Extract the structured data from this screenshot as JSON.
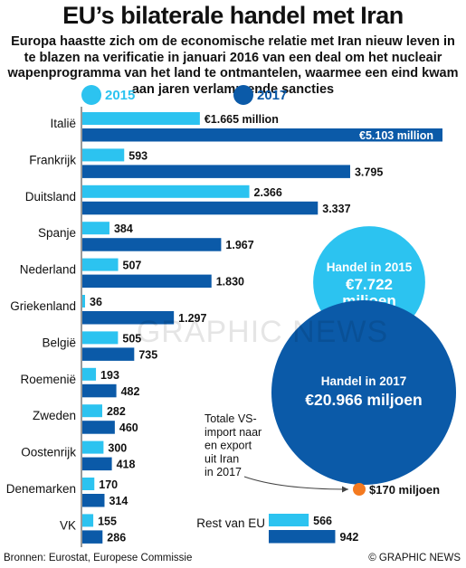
{
  "title": "EU’s bilaterale handel met Iran",
  "subtitle": "Europa haastte zich om de economische relatie met Iran nieuw leven in te blazen na verificatie in januari 2016 van een deal om het nucleair wapenprogramma van het land te ontmantelen, waarmee een eind kwam aan jaren verlammende sancties",
  "colors": {
    "y2015": "#2cc3f0",
    "y2017": "#0b5aa8",
    "marker": "#f47a20"
  },
  "chart_data": {
    "type": "bar",
    "orientation": "horizontal",
    "unit": "€ miljoen",
    "categories": [
      "Italië",
      "Frankrijk",
      "Duitsland",
      "Spanje",
      "Nederland",
      "Griekenland",
      "België",
      "Roemenië",
      "Zweden",
      "Oostenrijk",
      "Denemarken",
      "VK"
    ],
    "series": [
      {
        "name": "2015",
        "values": [
          1665,
          593,
          2366,
          384,
          507,
          36,
          505,
          193,
          282,
          300,
          170,
          155
        ],
        "labels": [
          "€1.665 million",
          "593",
          "2.366",
          "384",
          "507",
          "36",
          "505",
          "193",
          "282",
          "300",
          "170",
          "155"
        ]
      },
      {
        "name": "2017",
        "values": [
          5103,
          3795,
          3337,
          1967,
          1830,
          1297,
          735,
          482,
          460,
          418,
          314,
          286
        ],
        "labels": [
          "€5.103 million",
          "3.795",
          "3.337",
          "1.967",
          "1.830",
          "1.297",
          "735",
          "482",
          "460",
          "418",
          "314",
          "286"
        ]
      }
    ],
    "rest": {
      "label": "Rest van EU",
      "values": [
        566,
        942
      ],
      "labels": [
        "566",
        "942"
      ]
    },
    "totals": [
      {
        "label": "Handel in 2015",
        "value_label": "€7.722 miljoen",
        "value": 7722
      },
      {
        "label": "Handel in 2017",
        "value_label": "€20.966 miljoen",
        "value": 20966
      }
    ],
    "us_note": {
      "text": [
        "Totale VS-",
        "import naar",
        "en export",
        "uit Iran",
        "in 2017"
      ],
      "value_label": "$170 miljoen",
      "value": 170
    }
  },
  "legend": {
    "y2015": "2015",
    "y2017": "2017"
  },
  "watermark": "GRAPHIC NEWS",
  "footer": {
    "sources": "Bronnen: Eurostat, Europese Commissie",
    "credit": "© GRAPHIC NEWS"
  }
}
